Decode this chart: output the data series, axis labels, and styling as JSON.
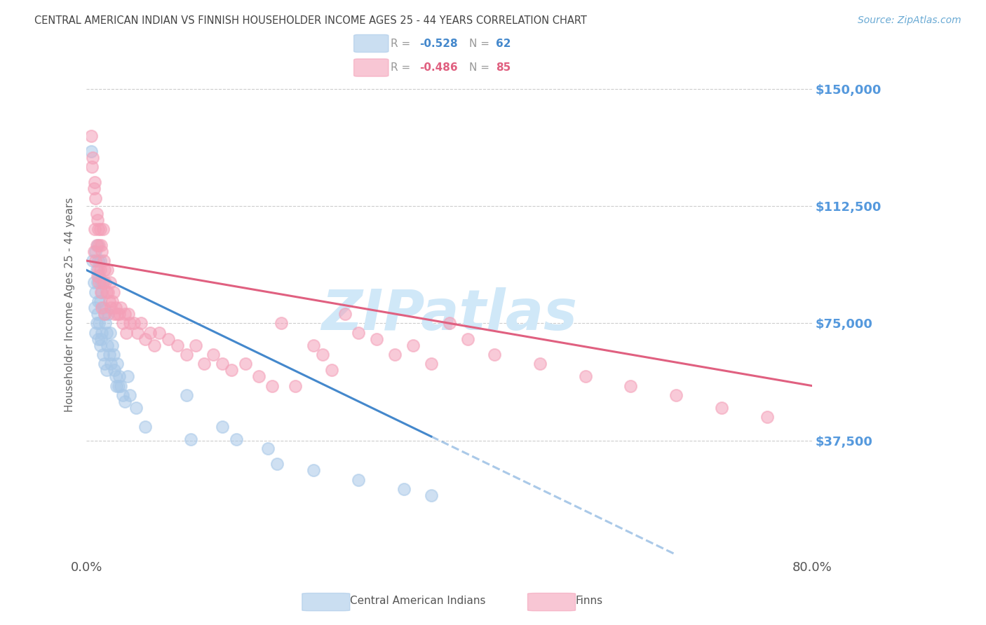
{
  "title": "CENTRAL AMERICAN INDIAN VS FINNISH HOUSEHOLDER INCOME AGES 25 - 44 YEARS CORRELATION CHART",
  "source": "Source: ZipAtlas.com",
  "ylabel": "Householder Income Ages 25 - 44 years",
  "xlim": [
    0.0,
    0.8
  ],
  "ylim": [
    0,
    162000
  ],
  "yticks": [
    0,
    37500,
    75000,
    112500,
    150000
  ],
  "ytick_labels": [
    "",
    "$37,500",
    "$75,000",
    "$112,500",
    "$150,000"
  ],
  "legend_r1": "-0.528",
  "legend_n1": "62",
  "legend_r2": "-0.486",
  "legend_n2": "85",
  "blue_color": "#a8c8e8",
  "pink_color": "#f4a0b8",
  "blue_line_color": "#4488cc",
  "pink_line_color": "#e06080",
  "title_color": "#444444",
  "source_color": "#6aaad4",
  "ytick_color": "#5599dd",
  "watermark_color": "#d0e8f8",
  "watermark_text": "ZIPatlas",
  "background_color": "#ffffff",
  "grid_color": "#cccccc",
  "blue_line_x0": 0.0,
  "blue_line_y0": 92000,
  "blue_line_x1": 0.5,
  "blue_line_y1": 22000,
  "pink_line_x0": 0.0,
  "pink_line_y0": 95000,
  "pink_line_x1": 0.8,
  "pink_line_y1": 55000,
  "blue_x": [
    0.005,
    0.007,
    0.008,
    0.009,
    0.01,
    0.01,
    0.01,
    0.011,
    0.011,
    0.012,
    0.012,
    0.012,
    0.013,
    0.013,
    0.013,
    0.014,
    0.014,
    0.015,
    0.015,
    0.015,
    0.016,
    0.016,
    0.017,
    0.017,
    0.018,
    0.018,
    0.019,
    0.02,
    0.02,
    0.021,
    0.022,
    0.022,
    0.023,
    0.024,
    0.025,
    0.026,
    0.027,
    0.028,
    0.03,
    0.031,
    0.032,
    0.033,
    0.034,
    0.035,
    0.036,
    0.038,
    0.04,
    0.042,
    0.045,
    0.048,
    0.055,
    0.065,
    0.11,
    0.115,
    0.15,
    0.165,
    0.2,
    0.21,
    0.25,
    0.3,
    0.35,
    0.38
  ],
  "blue_y": [
    130000,
    95000,
    88000,
    80000,
    98000,
    85000,
    72000,
    92000,
    75000,
    100000,
    88000,
    78000,
    95000,
    82000,
    70000,
    90000,
    75000,
    95000,
    82000,
    68000,
    88000,
    70000,
    85000,
    72000,
    88000,
    65000,
    80000,
    78000,
    62000,
    75000,
    72000,
    60000,
    68000,
    78000,
    65000,
    72000,
    62000,
    68000,
    65000,
    60000,
    58000,
    55000,
    62000,
    55000,
    58000,
    55000,
    52000,
    50000,
    58000,
    52000,
    48000,
    42000,
    52000,
    38000,
    42000,
    38000,
    35000,
    30000,
    28000,
    25000,
    22000,
    20000
  ],
  "pink_x": [
    0.005,
    0.006,
    0.007,
    0.008,
    0.008,
    0.009,
    0.009,
    0.01,
    0.01,
    0.011,
    0.011,
    0.012,
    0.012,
    0.013,
    0.013,
    0.014,
    0.014,
    0.015,
    0.015,
    0.016,
    0.016,
    0.017,
    0.017,
    0.018,
    0.018,
    0.019,
    0.02,
    0.02,
    0.021,
    0.022,
    0.023,
    0.024,
    0.025,
    0.026,
    0.027,
    0.028,
    0.03,
    0.031,
    0.032,
    0.034,
    0.036,
    0.038,
    0.04,
    0.042,
    0.044,
    0.046,
    0.048,
    0.052,
    0.056,
    0.06,
    0.065,
    0.07,
    0.075,
    0.08,
    0.09,
    0.1,
    0.11,
    0.12,
    0.13,
    0.14,
    0.15,
    0.16,
    0.175,
    0.19,
    0.205,
    0.215,
    0.23,
    0.25,
    0.26,
    0.27,
    0.285,
    0.3,
    0.32,
    0.34,
    0.36,
    0.38,
    0.4,
    0.42,
    0.45,
    0.5,
    0.55,
    0.6,
    0.65,
    0.7,
    0.75
  ],
  "pink_y": [
    135000,
    125000,
    128000,
    118000,
    98000,
    120000,
    105000,
    115000,
    95000,
    110000,
    100000,
    108000,
    90000,
    105000,
    92000,
    100000,
    88000,
    105000,
    92000,
    100000,
    85000,
    98000,
    80000,
    105000,
    88000,
    95000,
    92000,
    78000,
    88000,
    85000,
    92000,
    85000,
    82000,
    88000,
    80000,
    82000,
    85000,
    78000,
    80000,
    78000,
    78000,
    80000,
    75000,
    78000,
    72000,
    78000,
    75000,
    75000,
    72000,
    75000,
    70000,
    72000,
    68000,
    72000,
    70000,
    68000,
    65000,
    68000,
    62000,
    65000,
    62000,
    60000,
    62000,
    58000,
    55000,
    75000,
    55000,
    68000,
    65000,
    60000,
    78000,
    72000,
    70000,
    65000,
    68000,
    62000,
    75000,
    70000,
    65000,
    62000,
    58000,
    55000,
    52000,
    48000,
    45000
  ]
}
